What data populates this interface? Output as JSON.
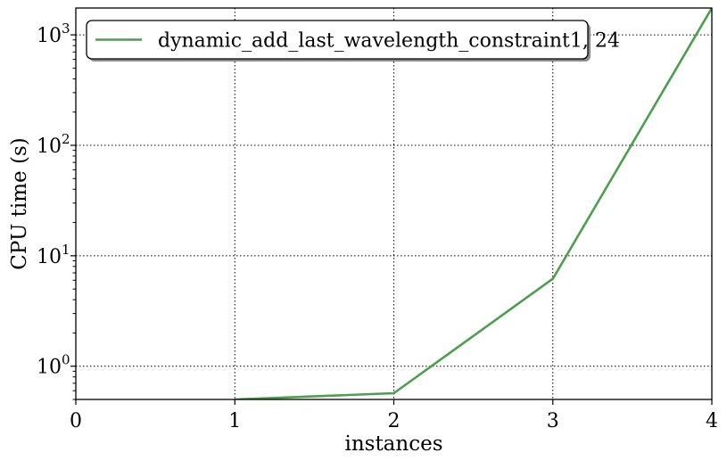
{
  "chart_data": {
    "type": "line",
    "title": "",
    "xlabel": "instances",
    "ylabel": "CPU time (s)",
    "xlim": [
      0,
      4
    ],
    "ylim": [
      0.5,
      1750
    ],
    "yscale": "log",
    "grid": true,
    "legend_position": "top-left",
    "x_ticks": [
      {
        "value": 0,
        "label": "0"
      },
      {
        "value": 1,
        "label": "1"
      },
      {
        "value": 2,
        "label": "2"
      },
      {
        "value": 3,
        "label": "3"
      },
      {
        "value": 4,
        "label": "4"
      }
    ],
    "y_ticks": [
      {
        "value": 1,
        "base": "10",
        "exp": "0"
      },
      {
        "value": 10,
        "base": "10",
        "exp": "1"
      },
      {
        "value": 100,
        "base": "10",
        "exp": "2"
      },
      {
        "value": 1000,
        "base": "10",
        "exp": "3"
      }
    ],
    "series": [
      {
        "name": "dynamic_add_last_wavelength_constraint1, 24",
        "color": "#4c9f4c",
        "x": [
          1,
          2,
          3,
          4
        ],
        "y": [
          0.5,
          0.57,
          6.2,
          1750
        ]
      }
    ]
  }
}
